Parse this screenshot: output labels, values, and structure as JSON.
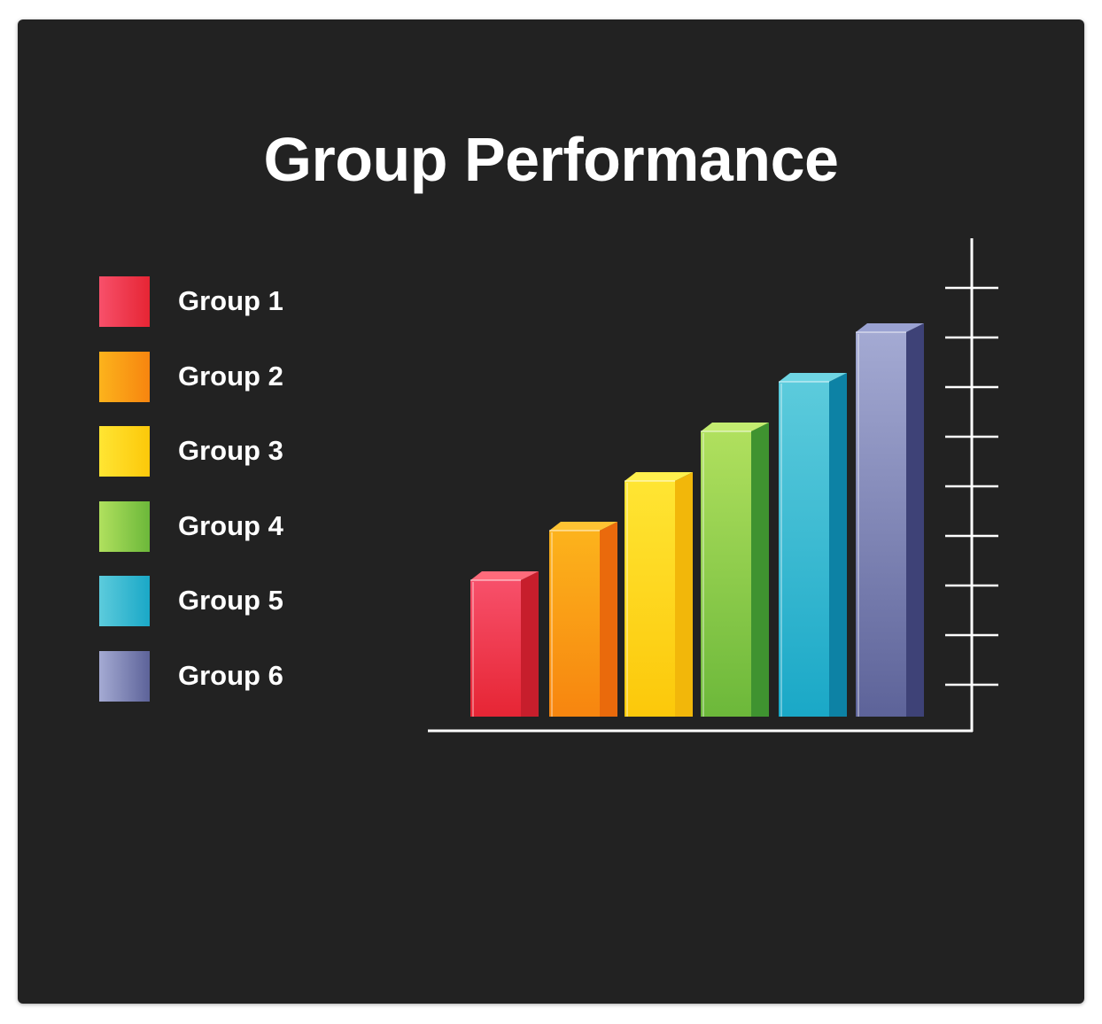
{
  "chart_data": {
    "type": "bar",
    "title": "Group Performance",
    "xlabel": "",
    "ylabel": "",
    "categories": [
      "Group 1",
      "Group 2",
      "Group 3",
      "Group 4",
      "Group 5",
      "Group 6"
    ],
    "values": [
      2.75,
      3.75,
      4.75,
      5.75,
      6.75,
      7.75
    ],
    "ylim": [
      0,
      9
    ],
    "y_tick_labels": false,
    "grid": false,
    "legend_placement": "left",
    "style": "3d",
    "colors": [
      {
        "light": "#f7506a",
        "dark": "#e62534",
        "side": "#c71e2c",
        "top": "#ff6b7b"
      },
      {
        "light": "#fcb31c",
        "dark": "#f7850f",
        "side": "#ea6a0c",
        "top": "#ffc333"
      },
      {
        "light": "#ffe533",
        "dark": "#fcc80a",
        "side": "#f2b70a",
        "top": "#fff04d"
      },
      {
        "light": "#b0e05e",
        "dark": "#6cb83a",
        "side": "#3f9330",
        "top": "#c3ec70"
      },
      {
        "light": "#5ccbdc",
        "dark": "#1aa8c7",
        "side": "#0d82a5",
        "top": "#6fd6e4"
      },
      {
        "light": "#a4aad3",
        "dark": "#5d6399",
        "side": "#3e4277",
        "top": "#9aa2d2"
      }
    ],
    "axis_color": "#ffffff"
  },
  "background_color": "#222222"
}
